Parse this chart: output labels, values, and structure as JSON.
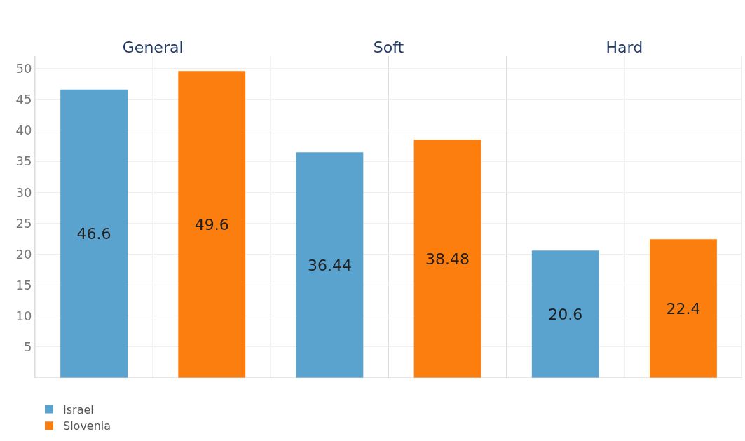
{
  "chart_data": {
    "type": "bar",
    "categories": [
      "General",
      "Soft",
      "Hard"
    ],
    "series": [
      {
        "name": "Israel",
        "color": "#5ba3cf",
        "values": [
          46.6,
          36.44,
          20.6
        ]
      },
      {
        "name": "Slovenia",
        "color": "#fb7e0f",
        "values": [
          49.6,
          38.48,
          22.4
        ]
      }
    ],
    "ylim": [
      0,
      52
    ],
    "yticks": [
      5,
      10,
      15,
      20,
      25,
      30,
      35,
      40,
      45,
      50
    ],
    "grid": true,
    "data_labels": true,
    "legend": "bottom left"
  }
}
